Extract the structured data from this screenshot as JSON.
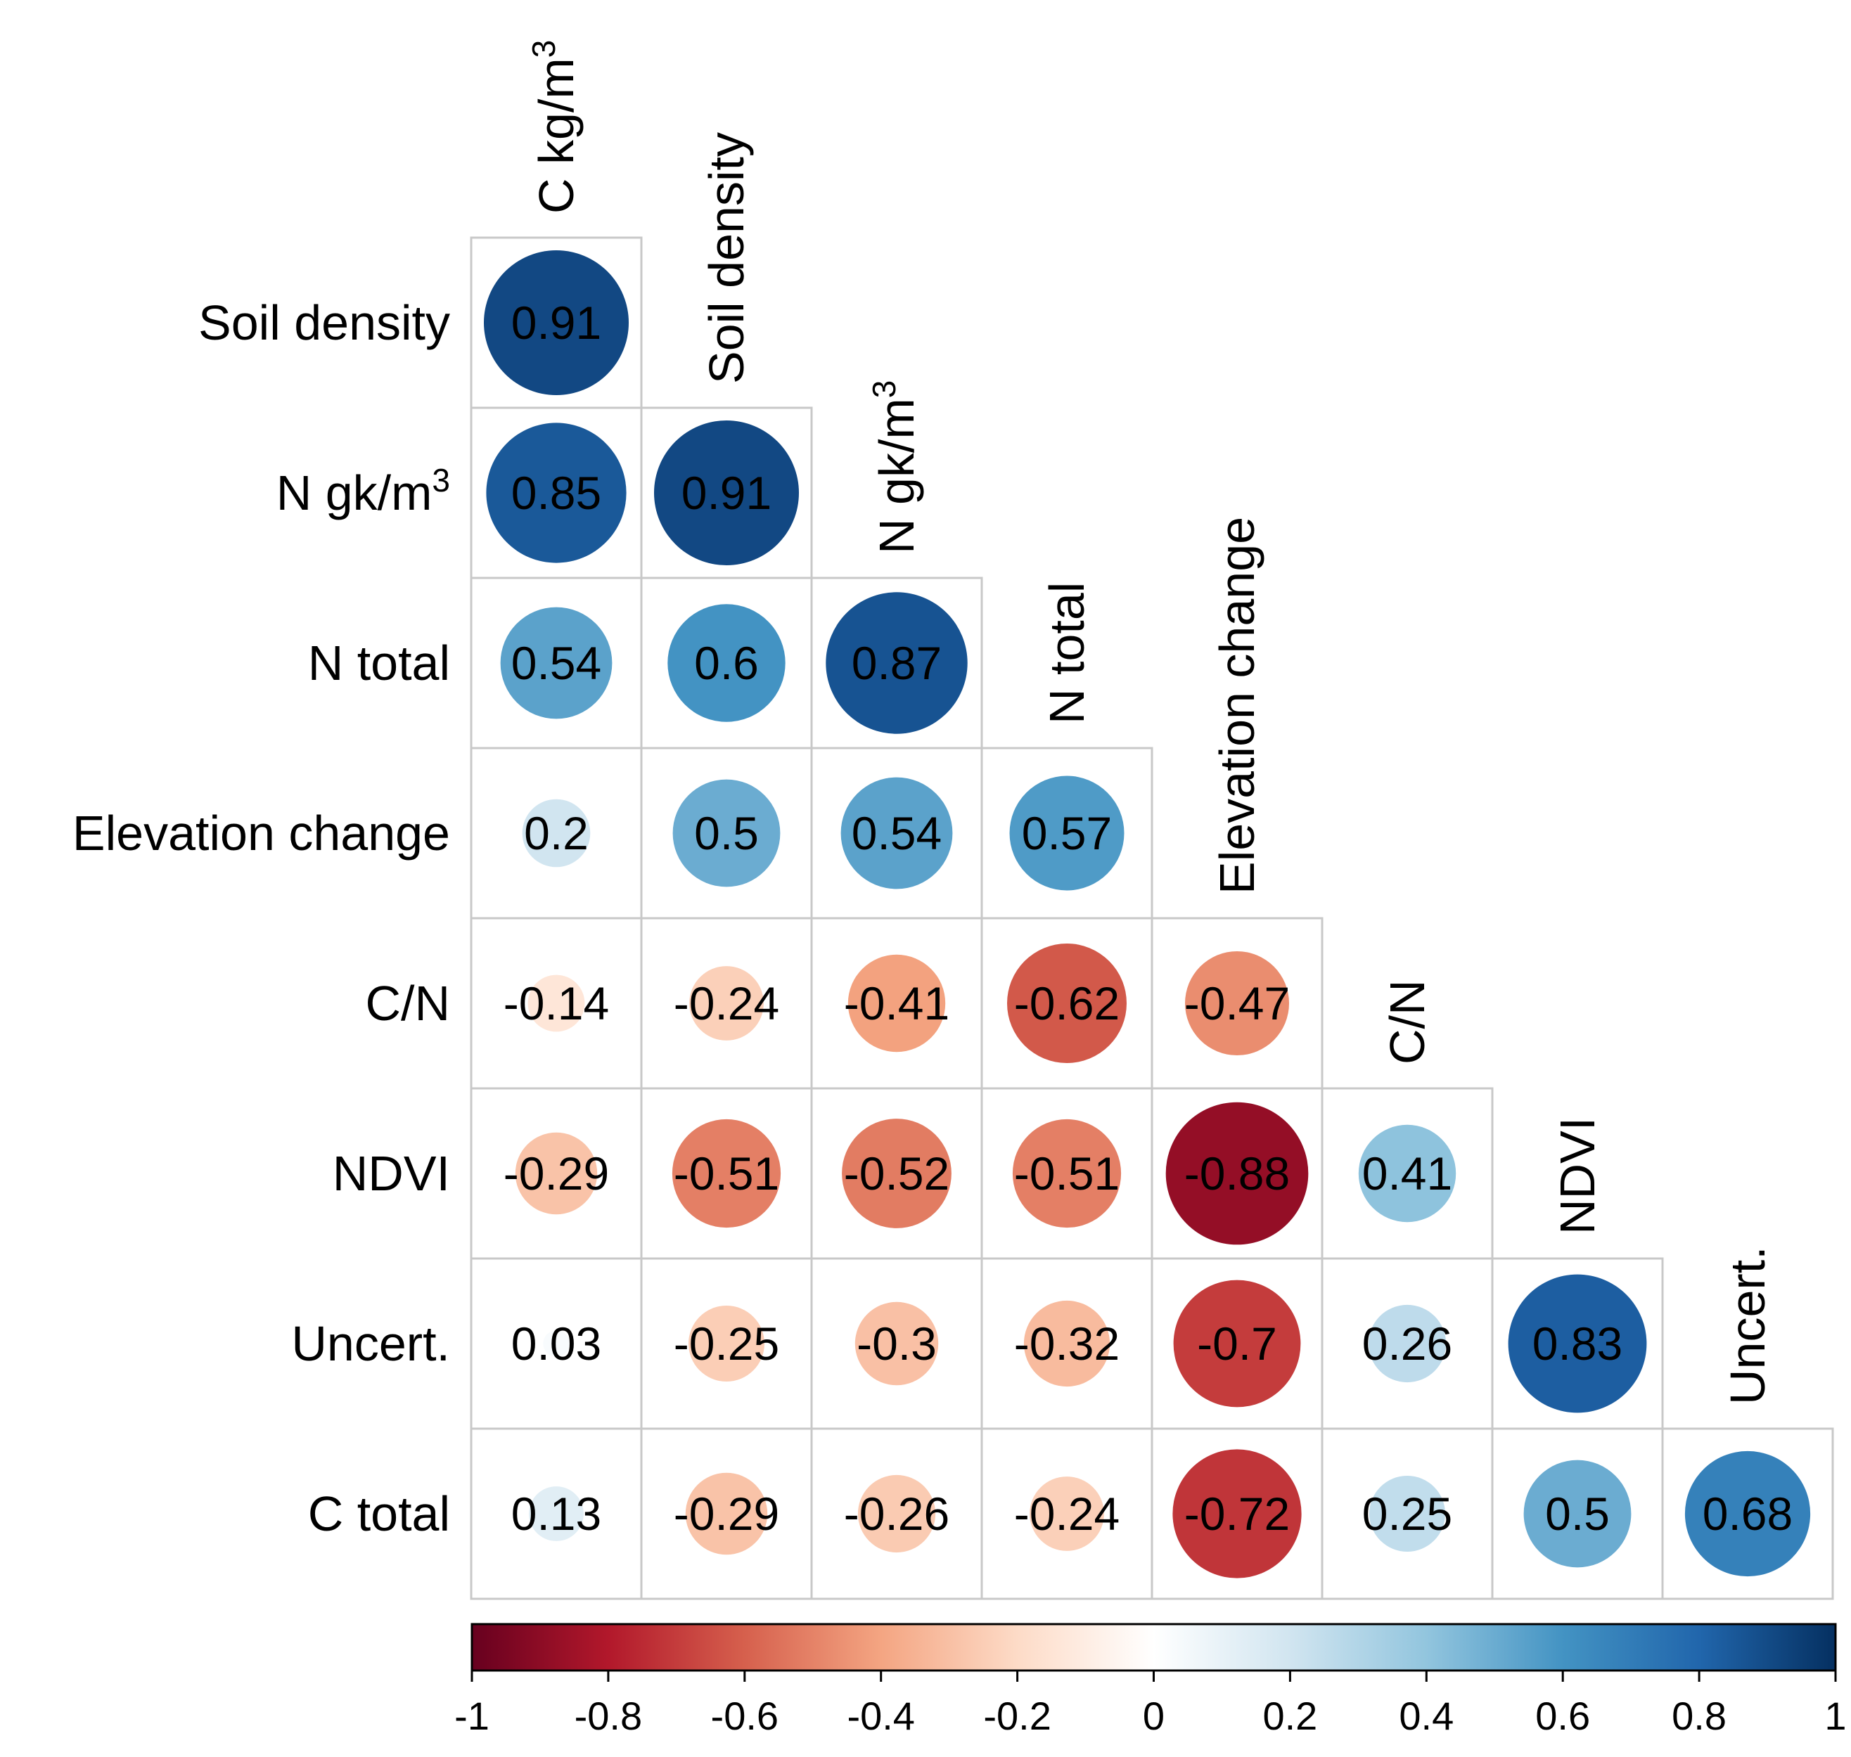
{
  "chart_data": {
    "type": "heatmap",
    "subtype": "correlation-matrix-lower-triangle-circles",
    "column_labels": [
      {
        "text": "C kg/m",
        "sup": "3"
      },
      {
        "text": "Soil density",
        "sup": ""
      },
      {
        "text": "N gk/m",
        "sup": "3"
      },
      {
        "text": "N total",
        "sup": ""
      },
      {
        "text": "Elevation change",
        "sup": ""
      },
      {
        "text": "C/N",
        "sup": ""
      },
      {
        "text": "NDVI",
        "sup": ""
      },
      {
        "text": "Uncert.",
        "sup": ""
      }
    ],
    "row_labels": [
      {
        "text": "Soil density",
        "sup": ""
      },
      {
        "text": "N gk/m",
        "sup": "3"
      },
      {
        "text": "N total",
        "sup": ""
      },
      {
        "text": "Elevation change",
        "sup": ""
      },
      {
        "text": "C/N",
        "sup": ""
      },
      {
        "text": "NDVI",
        "sup": ""
      },
      {
        "text": "Uncert.",
        "sup": ""
      },
      {
        "text": "C total",
        "sup": ""
      }
    ],
    "values": [
      [
        "0.91"
      ],
      [
        "0.85",
        "0.91"
      ],
      [
        "0.54",
        "0.6",
        "0.87"
      ],
      [
        "0.2",
        "0.5",
        "0.54",
        "0.57"
      ],
      [
        "-0.14",
        "-0.24",
        "-0.41",
        "-0.62",
        "-0.47"
      ],
      [
        "-0.29",
        "-0.51",
        "-0.52",
        "-0.51",
        "-0.88",
        "0.41"
      ],
      [
        "0.03",
        "-0.25",
        "-0.3",
        "-0.32",
        "-0.7",
        "0.26",
        "0.83"
      ],
      [
        "0.13",
        "-0.29",
        "-0.26",
        "-0.24",
        "-0.72",
        "0.25",
        "0.5",
        "0.68"
      ]
    ],
    "colorbar": {
      "range": [
        -1,
        1
      ],
      "ticks": [
        "-1",
        "-0.8",
        "-0.6",
        "-0.4",
        "-0.2",
        "0",
        "0.2",
        "0.4",
        "0.6",
        "0.8",
        "1"
      ],
      "colors": [
        "#67001f",
        "#b2182b",
        "#d6604d",
        "#f4a582",
        "#fddbc7",
        "#ffffff",
        "#d1e5f0",
        "#92c5de",
        "#4393c3",
        "#2166ac",
        "#053061"
      ]
    }
  }
}
